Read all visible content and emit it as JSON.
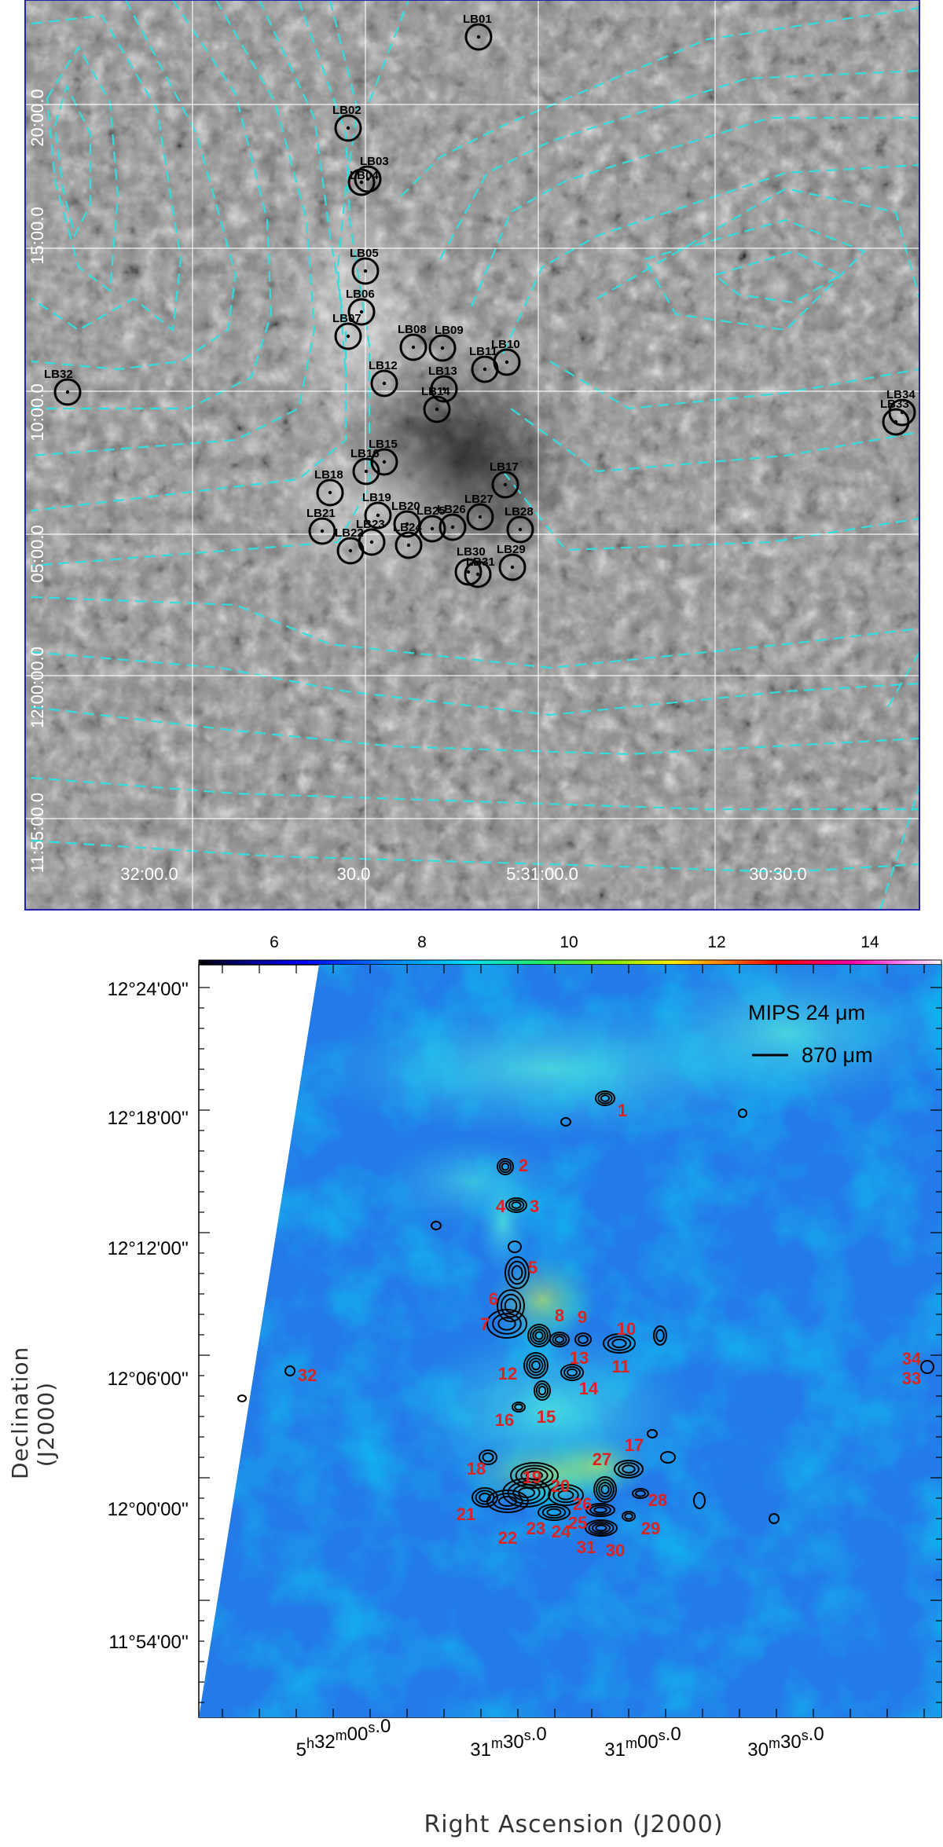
{
  "top_panel": {
    "dec_labels": [
      "20:00.0",
      "15:00.0",
      "10:00.0",
      "05:00.0",
      "12:00:00.0",
      "11:55:00.0"
    ],
    "ra_labels": [
      "32:00.0",
      "30.0",
      "5:31:00.0",
      "30:30.0"
    ],
    "sources": [
      {
        "id": "LB01",
        "label": "LB01"
      },
      {
        "id": "LB02",
        "label": "LB02"
      },
      {
        "id": "LB03",
        "label": "LB03"
      },
      {
        "id": "LB04",
        "label": "LB04"
      },
      {
        "id": "LB05",
        "label": "LB05"
      },
      {
        "id": "LB06",
        "label": "LB06"
      },
      {
        "id": "LB07",
        "label": "LB07"
      },
      {
        "id": "LB08",
        "label": "LB08"
      },
      {
        "id": "LB09",
        "label": "LB09"
      },
      {
        "id": "LB10",
        "label": "LB10"
      },
      {
        "id": "LB11",
        "label": "LB11"
      },
      {
        "id": "LB12",
        "label": "LB12"
      },
      {
        "id": "LB13",
        "label": "LB13"
      },
      {
        "id": "LB14",
        "label": "LB14"
      },
      {
        "id": "LB15",
        "label": "LB15"
      },
      {
        "id": "LB16",
        "label": "LB16"
      },
      {
        "id": "LB17",
        "label": "LB17"
      },
      {
        "id": "LB18",
        "label": "LB18"
      },
      {
        "id": "LB19",
        "label": "LB19"
      },
      {
        "id": "LB20",
        "label": "LB20"
      },
      {
        "id": "LB21",
        "label": "LB21"
      },
      {
        "id": "LB22",
        "label": "LB22"
      },
      {
        "id": "LB23",
        "label": "LB23"
      },
      {
        "id": "LB24",
        "label": "LB24"
      },
      {
        "id": "LB25",
        "label": "LB25"
      },
      {
        "id": "LB26",
        "label": "LB26"
      },
      {
        "id": "LB27",
        "label": "LB27"
      },
      {
        "id": "LB28",
        "label": "LB28"
      },
      {
        "id": "LB29",
        "label": "LB29"
      },
      {
        "id": "LB30",
        "label": "LB30"
      },
      {
        "id": "LB31",
        "label": "LB31"
      },
      {
        "id": "LB32",
        "label": "LB32"
      },
      {
        "id": "LB33",
        "label": "LB33"
      },
      {
        "id": "LB34",
        "label": "LB34"
      }
    ]
  },
  "bottom_panel": {
    "colorbar_ticks": [
      "6",
      "8",
      "10",
      "12",
      "14"
    ],
    "legend": {
      "mips": "MIPS 24 μm",
      "contour": "870 μm"
    },
    "dec_labels": [
      "12°24'00''",
      "12°18'00''",
      "12°12'00''",
      "12°06'00''",
      "12°00'00''",
      "11°54'00''"
    ],
    "ra_labels": [
      "5h32m00.0s",
      "31m30.0s",
      "31m00.0s",
      "30m30.0s"
    ],
    "source_numbers": [
      "1",
      "2",
      "3",
      "4",
      "5",
      "6",
      "7",
      "8",
      "9",
      "10",
      "11",
      "12",
      "13",
      "14",
      "15",
      "16",
      "17",
      "18",
      "19",
      "20",
      "21",
      "22",
      "23",
      "24",
      "25",
      "26",
      "27",
      "28",
      "29",
      "30",
      "31",
      "32",
      "33",
      "34"
    ],
    "x_axis_title": "Right Ascension (J2000)",
    "y_axis_title": "Declination (J2000)"
  },
  "colors": {
    "contour_cyan": "#33dddd",
    "source_label_red": "#dd2222",
    "grid_white": "#ffffff",
    "frame_blue": "#2222aa"
  }
}
